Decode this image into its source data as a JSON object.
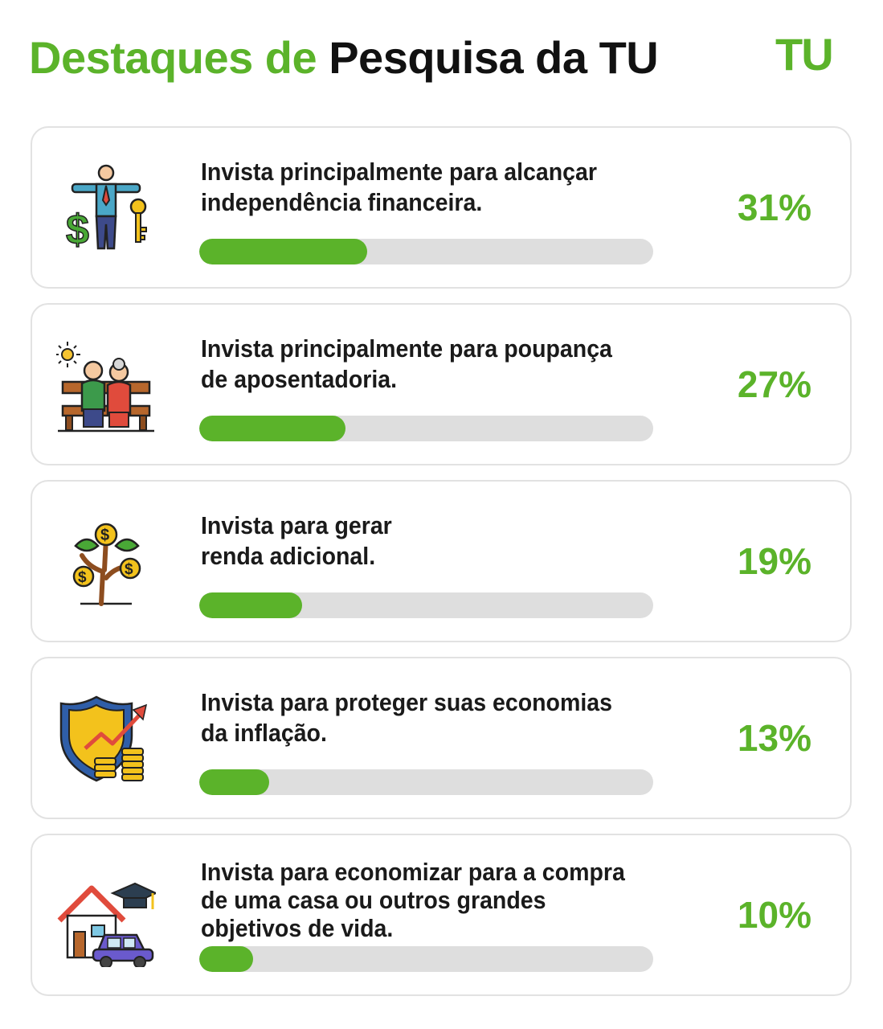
{
  "header": {
    "title_green": "Destaques de",
    "title_black": "Pesquisa da TU",
    "logo": "TU"
  },
  "colors": {
    "accent": "#5bb32a",
    "track": "#dedede",
    "text": "#1a1a1a"
  },
  "chart_data": {
    "type": "bar",
    "categories": [
      "Invista principalmente para alcançar independência financeira.",
      "Invista principalmente para poupança de aposentadoria.",
      "Invista para gerar renda adicional.",
      "Invista para proteger suas economias da inflação.",
      "Invista para economizar para a compra de uma casa ou outros grandes objetivos de vida."
    ],
    "values": [
      31,
      27,
      19,
      13,
      10
    ],
    "value_labels": [
      "31%",
      "27%",
      "19%",
      "13%",
      "10%"
    ],
    "xlim": [
      0,
      84
    ],
    "items": [
      {
        "line1": "Invista principalmente para alcançar",
        "line2": "independência financeira.",
        "line3": "",
        "icon": "independence-key-icon"
      },
      {
        "line1": "Invista principalmente para poupança",
        "line2": "de aposentadoria.",
        "line3": "",
        "icon": "retired-couple-icon"
      },
      {
        "line1": "Invista para gerar",
        "line2": "renda adicional.",
        "line3": "",
        "icon": "money-tree-icon"
      },
      {
        "line1": "Invista para proteger suas economias",
        "line2": "da inflação.",
        "line3": "",
        "icon": "shield-coins-icon"
      },
      {
        "line1": "Invista para economizar para a compra",
        "line2": "de uma casa ou outros grandes",
        "line3": "objetivos de vida.",
        "icon": "house-car-icon"
      }
    ]
  }
}
